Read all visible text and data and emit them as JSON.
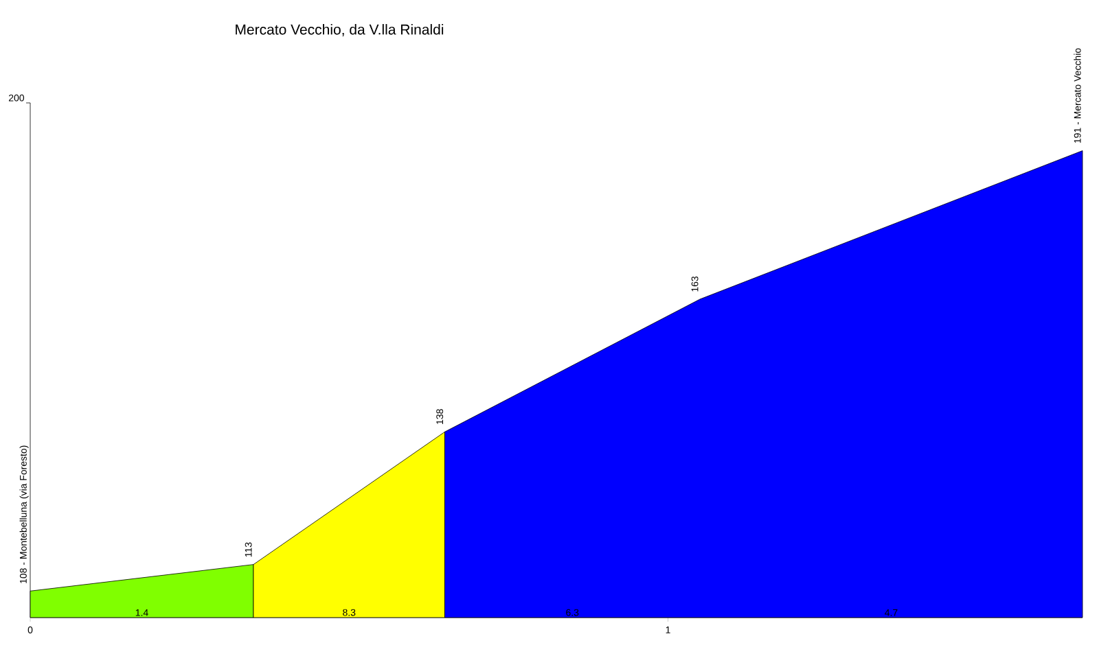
{
  "chart_data": {
    "type": "area",
    "title": "Mercato Vecchio, da V.lla Rinaldi",
    "series": [
      {
        "color": "#80ff00",
        "x": [
          0,
          0.35
        ],
        "values": [
          108,
          113
        ],
        "value_labels": [
          "108 - Montebelluna (via Foresto)",
          null
        ]
      },
      {
        "color": "#ffff00",
        "x": [
          0.35,
          0.65
        ],
        "values": [
          113,
          138
        ],
        "value_labels": [
          "113",
          null
        ]
      },
      {
        "color": "#0000ff",
        "x": [
          0.65,
          1.05,
          1.65
        ],
        "values": [
          138,
          163,
          191
        ],
        "value_labels": [
          "138",
          "163",
          "191 - Mercato Vecchio"
        ]
      }
    ],
    "xlim": [
      0,
      1.65
    ],
    "ylim": [
      103,
      200
    ],
    "xticks": [
      0,
      1
    ],
    "annotations": [
      "200",
      {
        "text": "1.4",
        "x": 0.175,
        "y": 103
      },
      {
        "text": "8.3",
        "x": 0.5,
        "y": 103
      },
      {
        "text": "6.3",
        "x": 0.85,
        "y": 103
      },
      {
        "text": "4.7",
        "x": 1.35,
        "y": 103
      }
    ]
  }
}
